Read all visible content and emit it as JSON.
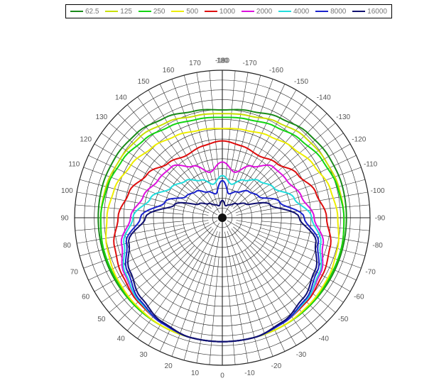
{
  "chart_data": {
    "type": "polar",
    "theta_direction": "0 at bottom, positive angles counter-clockwise on left side, negative on right",
    "radial_grid": "concentric rings, no radial tick labels",
    "angle_ticks": [
      "180",
      "170",
      "160",
      "150",
      "140",
      "130",
      "120",
      "110",
      "100",
      "90",
      "80",
      "70",
      "60",
      "50",
      "40",
      "30",
      "20",
      "10",
      "0",
      "-10",
      "-20",
      "-30",
      "-40",
      "-50",
      "-60",
      "-70",
      "-80",
      "-90",
      "-100",
      "-110",
      "-120",
      "-130",
      "-140",
      "-150",
      "-160",
      "-170",
      "-180"
    ],
    "angle_tick_values": [
      180,
      170,
      160,
      150,
      140,
      130,
      120,
      110,
      100,
      90,
      80,
      70,
      60,
      50,
      40,
      30,
      20,
      10,
      0,
      -10,
      -20,
      -30,
      -40,
      -50,
      -60,
      -70,
      -80,
      -90,
      -100,
      -110,
      -120,
      -130,
      -140,
      -150,
      -160,
      -170,
      -180
    ],
    "legend_position": "top",
    "angles": [
      0,
      15,
      30,
      45,
      60,
      75,
      90,
      105,
      120,
      135,
      150,
      165,
      180
    ],
    "series": [
      {
        "name": "62.5",
        "color": "#1a8a1a",
        "values": [
          1.0,
          1.0,
          1.0,
          1.0,
          1.0,
          1.0,
          1.0,
          1.0,
          0.99,
          0.97,
          0.93,
          0.89,
          0.87
        ]
      },
      {
        "name": "125",
        "color": "#c8e000",
        "values": [
          1.0,
          1.0,
          1.0,
          1.0,
          0.99,
          0.99,
          0.98,
          0.97,
          0.95,
          0.93,
          0.89,
          0.85,
          0.84
        ]
      },
      {
        "name": "250",
        "color": "#11d411",
        "values": [
          1.0,
          1.0,
          1.0,
          1.0,
          0.99,
          0.99,
          0.98,
          0.96,
          0.93,
          0.89,
          0.85,
          0.82,
          0.81
        ]
      },
      {
        "name": "500",
        "color": "#eded00",
        "values": [
          1.0,
          1.0,
          1.0,
          0.99,
          0.98,
          0.96,
          0.93,
          0.9,
          0.85,
          0.8,
          0.76,
          0.73,
          0.72
        ]
      },
      {
        "name": "1000",
        "color": "#dd0d0d",
        "values": [
          1.0,
          1.0,
          0.98,
          0.96,
          0.93,
          0.9,
          0.84,
          0.78,
          0.7,
          0.62,
          0.58,
          0.6,
          0.62
        ]
      },
      {
        "name": "2000",
        "color": "#dd11dd",
        "values": [
          1.0,
          1.0,
          0.98,
          0.95,
          0.91,
          0.84,
          0.74,
          0.66,
          0.6,
          0.58,
          0.48,
          0.38,
          0.45
        ]
      },
      {
        "name": "4000",
        "color": "#22dddd",
        "values": [
          1.0,
          1.0,
          0.98,
          0.95,
          0.9,
          0.82,
          0.72,
          0.6,
          0.48,
          0.42,
          0.35,
          0.28,
          0.34
        ]
      },
      {
        "name": "8000",
        "color": "#1a22cc",
        "values": [
          1.0,
          1.0,
          0.98,
          0.94,
          0.88,
          0.8,
          0.66,
          0.48,
          0.34,
          0.3,
          0.24,
          0.2,
          0.3
        ]
      },
      {
        "name": "16000",
        "color": "#101070",
        "values": [
          1.0,
          1.0,
          0.97,
          0.92,
          0.86,
          0.78,
          0.62,
          0.4,
          0.22,
          0.16,
          0.12,
          0.1,
          0.14
        ]
      }
    ]
  }
}
